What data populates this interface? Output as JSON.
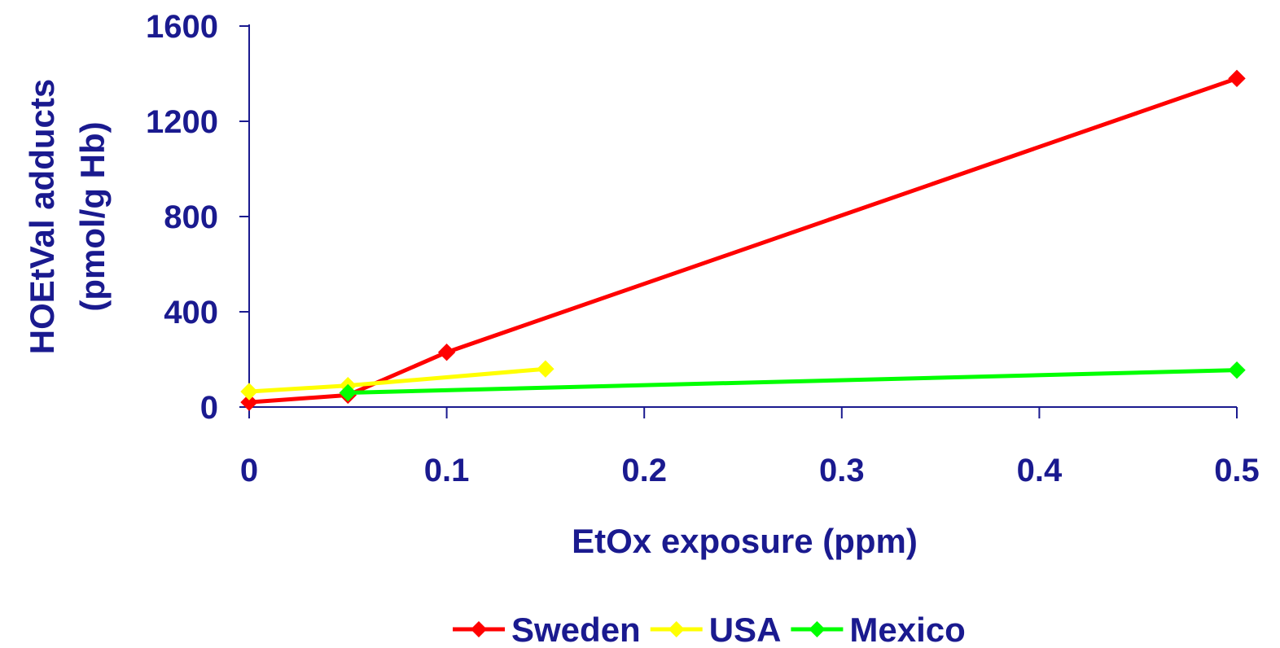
{
  "chart_data": {
    "type": "line",
    "xlabel": "EtOx exposure (ppm)",
    "ylabel_lines": [
      "HOEtVal adducts",
      "(pmol/g Hb)"
    ],
    "xlim": [
      0,
      0.5
    ],
    "ylim": [
      0,
      1600
    ],
    "x_ticks": [
      0,
      0.1,
      0.2,
      0.3,
      0.4,
      0.5
    ],
    "x_tick_labels": [
      "0",
      "0.1",
      "0.2",
      "0.3",
      "0.4",
      "0.5"
    ],
    "y_ticks": [
      0,
      400,
      800,
      1200,
      1600
    ],
    "y_tick_labels": [
      "0",
      "400",
      "800",
      "1200",
      "1600"
    ],
    "grid": false,
    "legend_position": "bottom",
    "series": [
      {
        "name": "Sweden",
        "color": "#ff0000",
        "marker": "diamond",
        "points": [
          [
            0,
            20
          ],
          [
            0.05,
            50
          ],
          [
            0.1,
            230
          ],
          [
            0.5,
            1380
          ]
        ]
      },
      {
        "name": "USA",
        "color": "#ffff00",
        "marker": "diamond",
        "points": [
          [
            0,
            65
          ],
          [
            0.05,
            90
          ],
          [
            0.15,
            160
          ]
        ]
      },
      {
        "name": "Mexico",
        "color": "#00ff00",
        "marker": "diamond",
        "points": [
          [
            0.05,
            60
          ],
          [
            0.5,
            155
          ]
        ]
      }
    ]
  }
}
